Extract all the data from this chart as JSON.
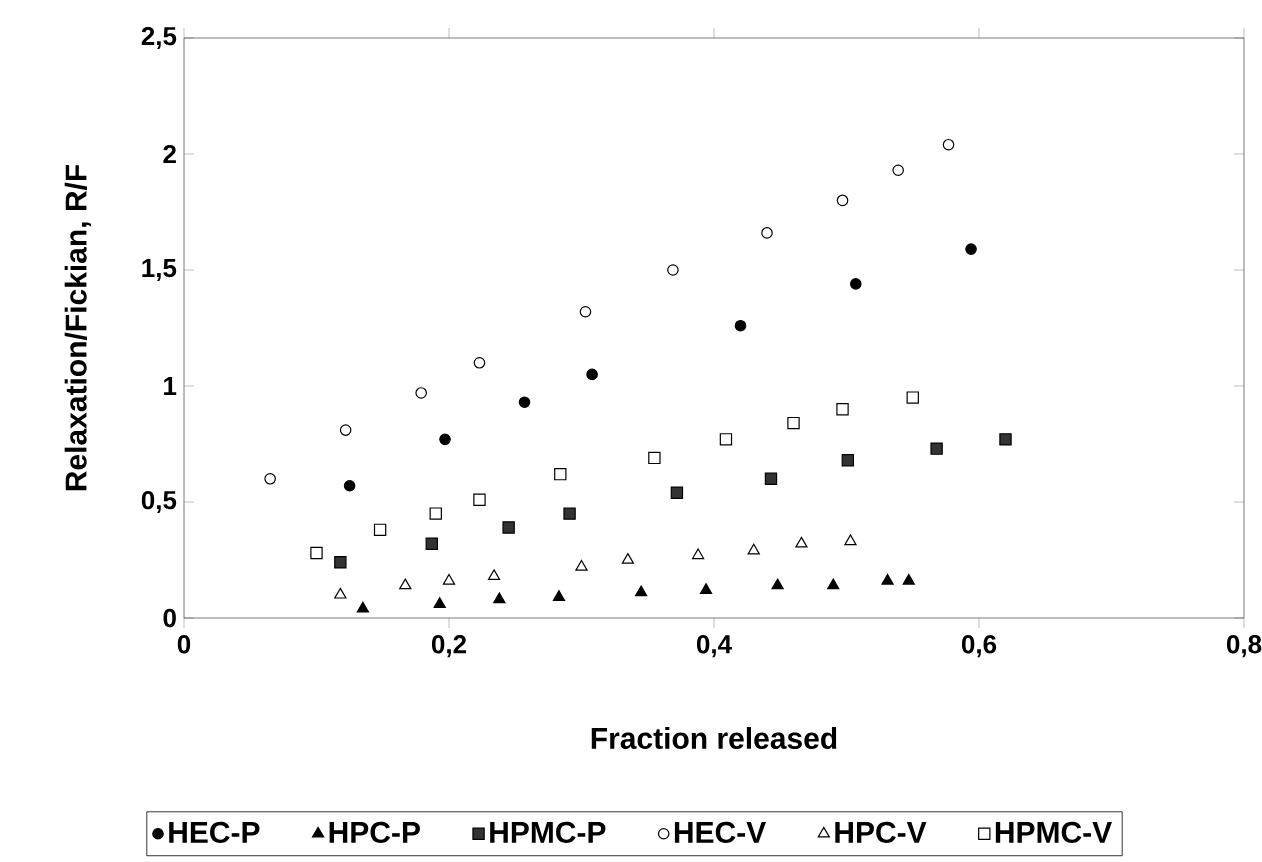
{
  "chart_data": {
    "type": "scatter",
    "xlabel": "Fraction released",
    "ylabel": "Relaxation/Fickian, R/F",
    "xlim": [
      0,
      0.8
    ],
    "ylim": [
      0,
      2.5
    ],
    "xticks": [
      0,
      {
        "value": 0.2,
        "label": "0,2"
      },
      {
        "value": 0.4,
        "label": "0,4"
      },
      {
        "value": 0.6,
        "label": "0,6"
      },
      {
        "value": 0.8,
        "label": "0,8"
      }
    ],
    "yticks": [
      0,
      {
        "value": 0.5,
        "label": "0,5"
      },
      1,
      {
        "value": 1.5,
        "label": "1,5"
      },
      2,
      {
        "value": 2.5,
        "label": "2,5"
      }
    ],
    "grid": false,
    "legend": "bottom",
    "series": [
      {
        "name": "HEC-P",
        "color": "#000000",
        "marker": "circle",
        "x": [
          0.125,
          0.197,
          0.257,
          0.308,
          0.42,
          0.507,
          0.594
        ],
        "values": [
          0.57,
          0.77,
          0.93,
          1.05,
          1.26,
          1.44,
          1.59
        ]
      },
      {
        "name": "HPC-P",
        "color": "#000000",
        "marker": "triangle",
        "x": [
          0.135,
          0.193,
          0.238,
          0.283,
          0.345,
          0.394,
          0.448,
          0.49,
          0.531,
          0.547
        ],
        "values": [
          0.04,
          0.06,
          0.08,
          0.09,
          0.11,
          0.12,
          0.14,
          0.14,
          0.16,
          0.16
        ]
      },
      {
        "name": "HPMC-P",
        "color": "#333333",
        "marker": "square",
        "x": [
          0.118,
          0.187,
          0.245,
          0.291,
          0.372,
          0.443,
          0.501,
          0.568,
          0.62
        ],
        "values": [
          0.24,
          0.32,
          0.39,
          0.45,
          0.54,
          0.6,
          0.68,
          0.73,
          0.77
        ]
      },
      {
        "name": "HEC-V",
        "color": "#ffffff",
        "marker": "circle",
        "x": [
          0.065,
          0.122,
          0.179,
          0.223,
          0.303,
          0.369,
          0.44,
          0.497,
          0.539,
          0.577
        ],
        "values": [
          0.6,
          0.81,
          0.97,
          1.1,
          1.32,
          1.5,
          1.66,
          1.8,
          1.93,
          2.04
        ]
      },
      {
        "name": "HPC-V",
        "color": "#ffffff",
        "marker": "triangle",
        "x": [
          0.118,
          0.167,
          0.2,
          0.234,
          0.3,
          0.335,
          0.388,
          0.43,
          0.466,
          0.503
        ],
        "values": [
          0.1,
          0.14,
          0.16,
          0.18,
          0.22,
          0.25,
          0.27,
          0.29,
          0.32,
          0.33
        ]
      },
      {
        "name": "HPMC-V",
        "color": "#ffffff",
        "marker": "square",
        "x": [
          0.1,
          0.148,
          0.19,
          0.223,
          0.284,
          0.355,
          0.409,
          0.46,
          0.497,
          0.55
        ],
        "values": [
          0.28,
          0.38,
          0.45,
          0.51,
          0.62,
          0.69,
          0.77,
          0.84,
          0.9,
          0.95
        ]
      }
    ]
  }
}
